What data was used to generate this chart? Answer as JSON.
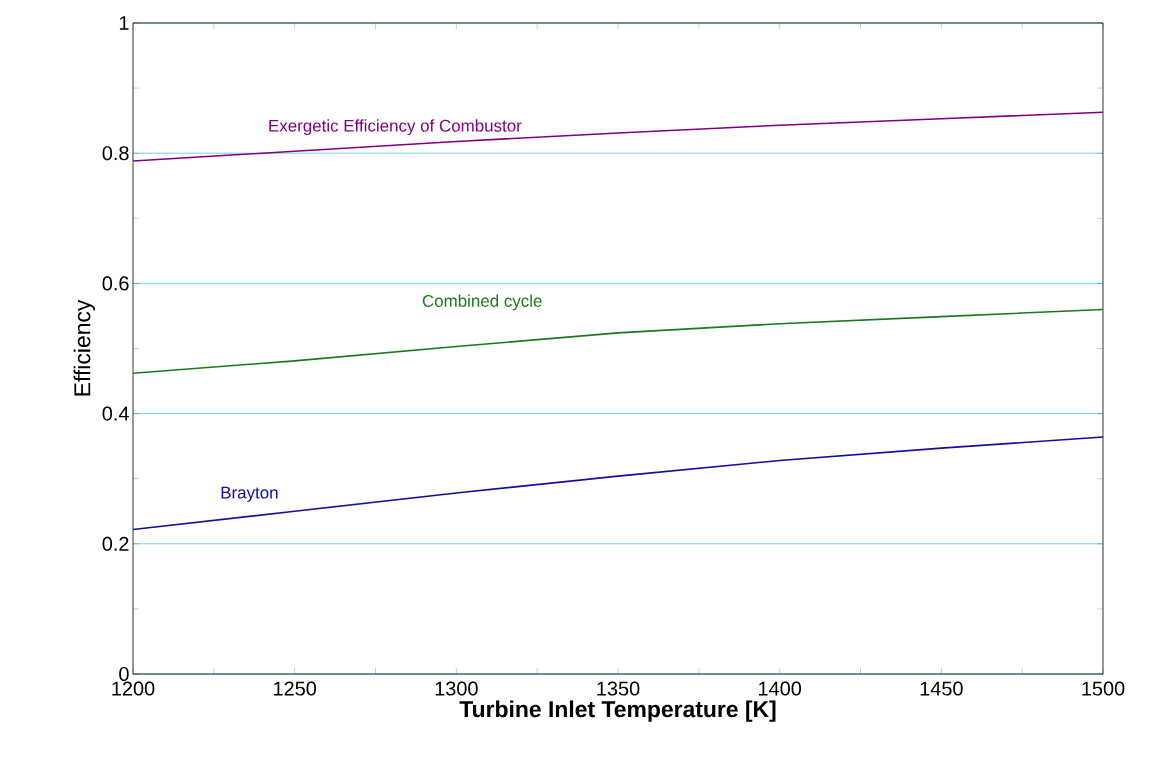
{
  "chart_data": {
    "type": "line",
    "xlabel": "Turbine Inlet Temperature [K]",
    "ylabel": "Efficiency",
    "x": [
      1200,
      1250,
      1300,
      1350,
      1400,
      1450,
      1500
    ],
    "series": [
      {
        "name": "Exergetic Efficiency of Combustor",
        "color": "#800080",
        "values": [
          0.788,
          0.803,
          0.818,
          0.831,
          0.843,
          0.853,
          0.863
        ]
      },
      {
        "name": "Combined cycle",
        "color": "#1a7a1a",
        "values": [
          0.462,
          0.481,
          0.503,
          0.524,
          0.538,
          0.549,
          0.56
        ]
      },
      {
        "name": "Brayton",
        "color": "#1010a0",
        "values": [
          0.222,
          0.25,
          0.278,
          0.304,
          0.328,
          0.347,
          0.364
        ]
      }
    ],
    "xlim": [
      1200,
      1500
    ],
    "ylim": [
      0,
      1
    ],
    "xticks": [
      1200,
      1250,
      1300,
      1350,
      1400,
      1450,
      1500
    ],
    "yticks": [
      0,
      0.2,
      0.4,
      0.6,
      0.8,
      1
    ],
    "grid": "y",
    "marker": "none",
    "line_style": "solid"
  }
}
